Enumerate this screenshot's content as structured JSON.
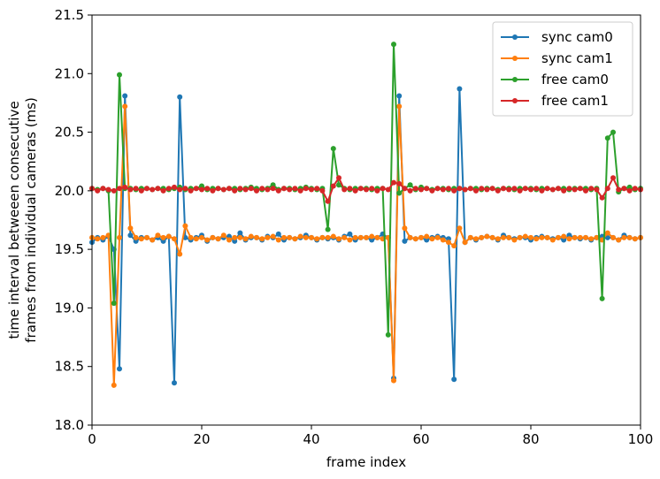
{
  "chart_data": {
    "type": "line",
    "title": "",
    "xlabel": "frame index",
    "ylabel": [
      "time interval betweeen consecutive",
      "frames from individual cameras (ms)"
    ],
    "xlim": [
      0,
      100
    ],
    "ylim": [
      18.0,
      21.5
    ],
    "xticks": [
      "0",
      "20",
      "40",
      "60",
      "80",
      "100"
    ],
    "xtick_values": [
      0,
      20,
      40,
      60,
      80,
      100
    ],
    "yticks": [
      "18.0",
      "18.5",
      "19.0",
      "19.5",
      "20.0",
      "20.5",
      "21.0",
      "21.5"
    ],
    "ytick_values": [
      18.0,
      18.5,
      19.0,
      19.5,
      20.0,
      20.5,
      21.0,
      21.5
    ],
    "grid": false,
    "legend_position": "top-right",
    "series": [
      {
        "name": "sync cam0",
        "color": "#1f77b4",
        "values": [
          19.56,
          19.6,
          19.58,
          19.61,
          19.5,
          18.48,
          20.81,
          19.62,
          19.57,
          19.6,
          19.6,
          19.58,
          19.6,
          19.57,
          19.61,
          18.36,
          20.8,
          19.6,
          19.58,
          19.6,
          19.62,
          19.57,
          19.6,
          19.59,
          19.6,
          19.61,
          19.57,
          19.64,
          19.58,
          19.6,
          19.6,
          19.58,
          19.61,
          19.6,
          19.63,
          19.58,
          19.6,
          19.59,
          19.6,
          19.62,
          19.6,
          19.58,
          19.6,
          19.59,
          19.6,
          19.58,
          19.61,
          19.63,
          19.58,
          19.6,
          19.6,
          19.58,
          19.6,
          19.63,
          19.6,
          18.4,
          20.81,
          19.57,
          19.6,
          19.59,
          19.6,
          19.58,
          19.6,
          19.61,
          19.6,
          19.59,
          18.39,
          20.87,
          19.56,
          19.6,
          19.58,
          19.6,
          19.61,
          19.6,
          19.58,
          19.62,
          19.6,
          19.59,
          19.6,
          19.6,
          19.58,
          19.6,
          19.61,
          19.6,
          19.59,
          19.6,
          19.58,
          19.62,
          19.6,
          19.59,
          19.6,
          19.58,
          19.6,
          19.61,
          19.6,
          19.6,
          19.58,
          19.62,
          19.6,
          19.59,
          19.6
        ]
      },
      {
        "name": "sync cam1",
        "color": "#ff7f0e",
        "values": [
          19.6,
          19.59,
          19.6,
          19.62,
          18.34,
          19.6,
          20.72,
          19.68,
          19.6,
          19.59,
          19.6,
          19.58,
          19.62,
          19.6,
          19.61,
          19.59,
          19.46,
          19.7,
          19.6,
          19.59,
          19.6,
          19.58,
          19.6,
          19.59,
          19.62,
          19.58,
          19.6,
          19.6,
          19.59,
          19.61,
          19.6,
          19.59,
          19.6,
          19.61,
          19.58,
          19.6,
          19.6,
          19.59,
          19.61,
          19.6,
          19.6,
          19.59,
          19.6,
          19.6,
          19.61,
          19.59,
          19.6,
          19.58,
          19.6,
          19.6,
          19.6,
          19.61,
          19.6,
          19.59,
          19.6,
          18.38,
          20.72,
          19.68,
          19.6,
          19.59,
          19.6,
          19.61,
          19.59,
          19.6,
          19.58,
          19.56,
          19.53,
          19.68,
          19.56,
          19.6,
          19.59,
          19.6,
          19.61,
          19.6,
          19.59,
          19.6,
          19.6,
          19.58,
          19.6,
          19.61,
          19.6,
          19.59,
          19.6,
          19.6,
          19.58,
          19.6,
          19.61,
          19.59,
          19.6,
          19.6,
          19.6,
          19.59,
          19.6,
          19.58,
          19.64,
          19.6,
          19.58,
          19.6,
          19.6,
          19.59,
          19.6
        ]
      },
      {
        "name": "free cam0",
        "color": "#2ca02c",
        "values": [
          20.02,
          20.01,
          20.02,
          20.0,
          19.04,
          20.99,
          20.02,
          20.02,
          20.01,
          20.02,
          20.02,
          20.01,
          20.02,
          20.02,
          20.01,
          20.02,
          20.03,
          20.01,
          20.02,
          20.02,
          20.04,
          20.01,
          20.02,
          20.02,
          20.01,
          20.02,
          20.02,
          20.01,
          20.02,
          20.03,
          20.02,
          20.01,
          20.02,
          20.05,
          20.01,
          20.02,
          20.02,
          20.01,
          20.02,
          20.03,
          20.02,
          20.01,
          20.02,
          19.67,
          20.36,
          20.05,
          20.02,
          20.01,
          20.02,
          20.02,
          20.02,
          20.01,
          20.02,
          20.02,
          18.77,
          21.25,
          19.98,
          20.02,
          20.05,
          20.01,
          20.03,
          20.02,
          20.01,
          20.02,
          20.02,
          20.01,
          20.02,
          20.02,
          20.01,
          20.02,
          20.02,
          20.01,
          20.02,
          20.02,
          20.01,
          20.02,
          20.02,
          20.01,
          20.02,
          20.02,
          20.02,
          20.01,
          20.02,
          20.02,
          20.01,
          20.02,
          20.02,
          20.01,
          20.02,
          20.02,
          20.02,
          20.01,
          20.02,
          19.08,
          20.45,
          20.5,
          19.99,
          20.02,
          20.03,
          20.01,
          20.02
        ]
      },
      {
        "name": "free cam1",
        "color": "#d62728",
        "values": [
          20.02,
          20.0,
          20.02,
          20.01,
          20.0,
          20.02,
          20.03,
          20.01,
          20.02,
          20.0,
          20.02,
          20.01,
          20.02,
          20.0,
          20.02,
          20.03,
          20.01,
          20.02,
          20.0,
          20.02,
          20.01,
          20.02,
          20.0,
          20.02,
          20.01,
          20.02,
          20.0,
          20.02,
          20.01,
          20.02,
          20.0,
          20.02,
          20.01,
          20.02,
          20.0,
          20.02,
          20.01,
          20.02,
          20.0,
          20.02,
          20.01,
          20.02,
          20.0,
          19.91,
          20.04,
          20.11,
          20.01,
          20.02,
          20.0,
          20.02,
          20.01,
          20.02,
          20.0,
          20.02,
          20.01,
          20.07,
          20.06,
          20.02,
          20.0,
          20.02,
          20.01,
          20.02,
          20.0,
          20.02,
          20.01,
          20.02,
          20.0,
          20.02,
          20.01,
          20.02,
          20.0,
          20.02,
          20.01,
          20.02,
          20.0,
          20.02,
          20.01,
          20.02,
          20.0,
          20.02,
          20.01,
          20.02,
          20.0,
          20.02,
          20.01,
          20.02,
          20.0,
          20.02,
          20.01,
          20.02,
          20.0,
          20.02,
          20.01,
          19.94,
          20.02,
          20.11,
          20.01,
          20.02,
          20.0,
          20.02,
          20.01
        ]
      }
    ]
  }
}
